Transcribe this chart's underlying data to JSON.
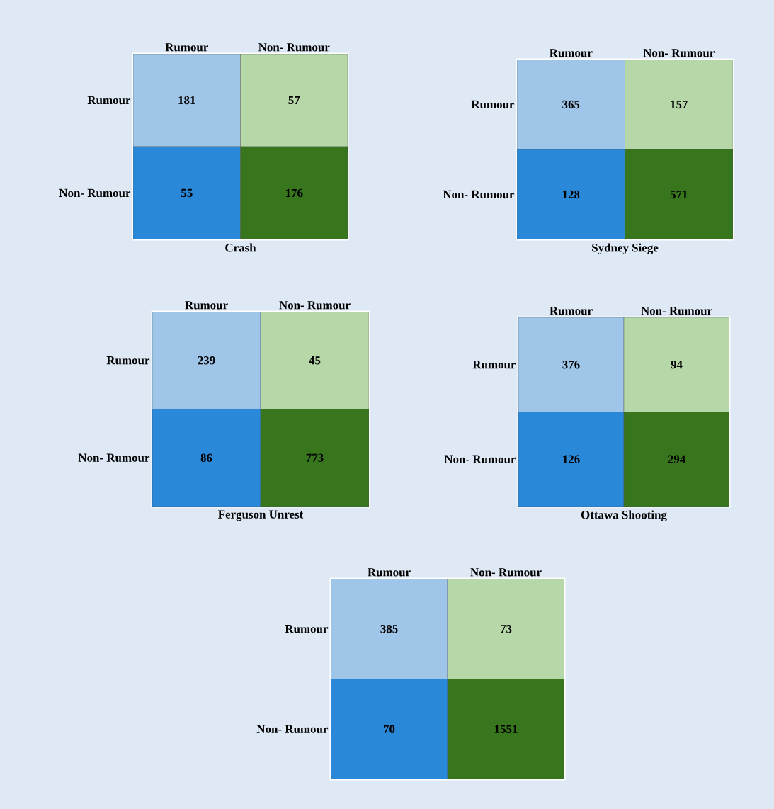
{
  "chart_data": [
    {
      "type": "heatmap",
      "title": "Crash",
      "categories": [
        "Rumour",
        "Non- Rumour"
      ],
      "y_categories": [
        "Rumour",
        "Non- Rumour"
      ],
      "cells": [
        [
          181,
          57
        ],
        [
          55,
          176
        ]
      ],
      "colors": [
        "#9fc5e8",
        "#b6d7a8",
        "#2a88d8",
        "#38761d"
      ],
      "data_labels": true
    },
    {
      "type": "heatmap",
      "title": "Sydney Siege",
      "categories": [
        "Rumour",
        "Non- Rumour"
      ],
      "y_categories": [
        "Rumour",
        "Non- Rumour"
      ],
      "cells": [
        [
          365,
          157
        ],
        [
          128,
          571
        ]
      ],
      "colors": [
        "#9fc5e8",
        "#b6d7a8",
        "#2a88d8",
        "#38761d"
      ],
      "data_labels": true
    },
    {
      "type": "heatmap",
      "title": "Ferguson Unrest",
      "categories": [
        "Rumour",
        "Non- Rumour"
      ],
      "y_categories": [
        "Rumour",
        "Non- Rumour"
      ],
      "cells": [
        [
          239,
          45
        ],
        [
          86,
          773
        ]
      ],
      "colors": [
        "#9fc5e8",
        "#b6d7a8",
        "#2a88d8",
        "#38761d"
      ],
      "data_labels": true
    },
    {
      "type": "heatmap",
      "title": "Ottawa Shooting",
      "categories": [
        "Rumour",
        "Non- Rumour"
      ],
      "y_categories": [
        "Rumour",
        "Non- Rumour"
      ],
      "cells": [
        [
          376,
          94
        ],
        [
          126,
          294
        ]
      ],
      "colors": [
        "#9fc5e8",
        "#b6d7a8",
        "#2a88d8",
        "#38761d"
      ],
      "data_labels": true
    },
    {
      "type": "heatmap",
      "categories": [
        "Rumour",
        "Non- Rumour"
      ],
      "y_categories": [
        "Rumour",
        "Non- Rumour"
      ],
      "cells": [
        [
          385,
          73
        ],
        [
          70,
          1551
        ]
      ],
      "colors": [
        "#9fc5e8",
        "#b6d7a8",
        "#2a88d8",
        "#38761d"
      ],
      "data_labels": true
    }
  ]
}
